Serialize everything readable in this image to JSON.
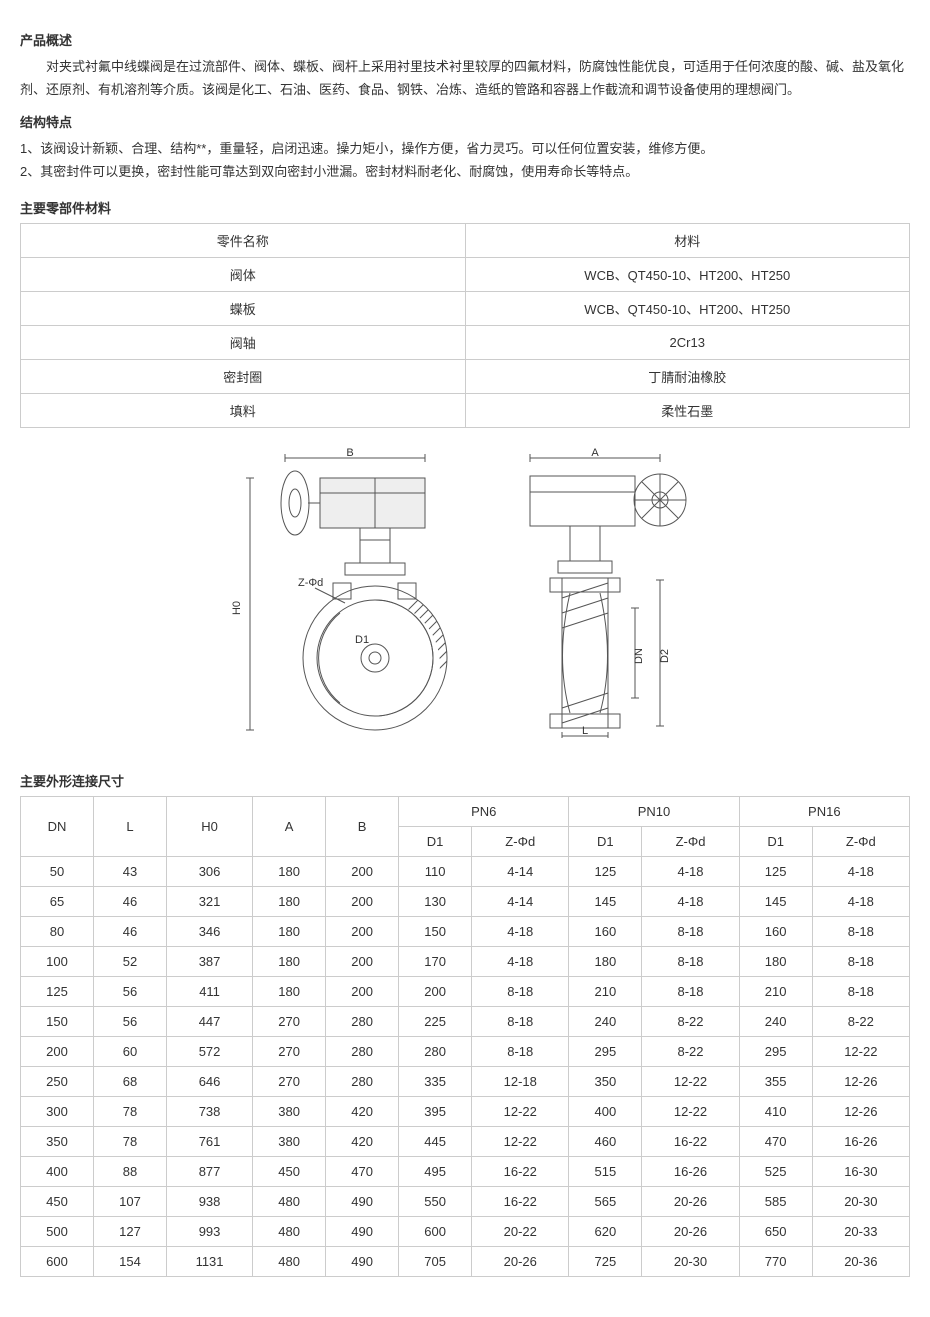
{
  "overview": {
    "title": "产品概述",
    "text": "对夹式衬氟中线蝶阀是在过流部件、阀体、蝶板、阀杆上采用衬里技术衬里较厚的四氟材料，防腐蚀性能优良，可适用于任何浓度的酸、碱、盐及氧化剂、还原剂、有机溶剂等介质。该阀是化工、石油、医药、食品、钢铁、冶炼、造纸的管路和容器上作截流和调节设备使用的理想阀门。"
  },
  "features": {
    "title": "结构特点",
    "items": [
      "1、该阀设计新颖、合理、结构**，重量轻，启闭迅速。操力矩小，操作方便，省力灵巧。可以任何位置安装，维修方便。",
      "2、其密封件可以更换，密封性能可靠达到双向密封小泄漏。密封材料耐老化、耐腐蚀，使用寿命长等特点。"
    ]
  },
  "materials": {
    "title": "主要零部件材料",
    "header": {
      "name": "零件名称",
      "material": "材料"
    },
    "rows": [
      {
        "name": "阀体",
        "material": "WCB、QT450-10、HT200、HT250"
      },
      {
        "name": "蝶板",
        "material": "WCB、QT450-10、HT200、HT250"
      },
      {
        "name": "阀轴",
        "material": "2Cr13"
      },
      {
        "name": "密封圈",
        "material": "丁腈耐油橡胶"
      },
      {
        "name": "填料",
        "material": "柔性石墨"
      }
    ]
  },
  "diagram": {
    "labels": {
      "B": "B",
      "A": "A",
      "H0": "H0",
      "ZPhi": "Z-Φd",
      "D1": "D1",
      "DN": "DN",
      "D2": "D2",
      "L": "L"
    },
    "stroke": "#555",
    "stroke_width": 1
  },
  "dims": {
    "title": "主要外形连接尺寸",
    "header1": {
      "DN": "DN",
      "L": "L",
      "H0": "H0",
      "A": "A",
      "B": "B",
      "PN6": "PN6",
      "PN10": "PN10",
      "PN16": "PN16"
    },
    "header2": {
      "D1": "D1",
      "ZPhi": "Z-Φd"
    },
    "rows": [
      {
        "DN": "50",
        "L": "43",
        "H0": "306",
        "A": "180",
        "B": "200",
        "PN6_D1": "110",
        "PN6_Z": "4-14",
        "PN10_D1": "125",
        "PN10_Z": "4-18",
        "PN16_D1": "125",
        "PN16_Z": "4-18"
      },
      {
        "DN": "65",
        "L": "46",
        "H0": "321",
        "A": "180",
        "B": "200",
        "PN6_D1": "130",
        "PN6_Z": "4-14",
        "PN10_D1": "145",
        "PN10_Z": "4-18",
        "PN16_D1": "145",
        "PN16_Z": "4-18"
      },
      {
        "DN": "80",
        "L": "46",
        "H0": "346",
        "A": "180",
        "B": "200",
        "PN6_D1": "150",
        "PN6_Z": "4-18",
        "PN10_D1": "160",
        "PN10_Z": "8-18",
        "PN16_D1": "160",
        "PN16_Z": "8-18"
      },
      {
        "DN": "100",
        "L": "52",
        "H0": "387",
        "A": "180",
        "B": "200",
        "PN6_D1": "170",
        "PN6_Z": "4-18",
        "PN10_D1": "180",
        "PN10_Z": "8-18",
        "PN16_D1": "180",
        "PN16_Z": "8-18"
      },
      {
        "DN": "125",
        "L": "56",
        "H0": "411",
        "A": "180",
        "B": "200",
        "PN6_D1": "200",
        "PN6_Z": "8-18",
        "PN10_D1": "210",
        "PN10_Z": "8-18",
        "PN16_D1": "210",
        "PN16_Z": "8-18"
      },
      {
        "DN": "150",
        "L": "56",
        "H0": "447",
        "A": "270",
        "B": "280",
        "PN6_D1": "225",
        "PN6_Z": "8-18",
        "PN10_D1": "240",
        "PN10_Z": "8-22",
        "PN16_D1": "240",
        "PN16_Z": "8-22"
      },
      {
        "DN": "200",
        "L": "60",
        "H0": "572",
        "A": "270",
        "B": "280",
        "PN6_D1": "280",
        "PN6_Z": "8-18",
        "PN10_D1": "295",
        "PN10_Z": "8-22",
        "PN16_D1": "295",
        "PN16_Z": "12-22"
      },
      {
        "DN": "250",
        "L": "68",
        "H0": "646",
        "A": "270",
        "B": "280",
        "PN6_D1": "335",
        "PN6_Z": "12-18",
        "PN10_D1": "350",
        "PN10_Z": "12-22",
        "PN16_D1": "355",
        "PN16_Z": "12-26"
      },
      {
        "DN": "300",
        "L": "78",
        "H0": "738",
        "A": "380",
        "B": "420",
        "PN6_D1": "395",
        "PN6_Z": "12-22",
        "PN10_D1": "400",
        "PN10_Z": "12-22",
        "PN16_D1": "410",
        "PN16_Z": "12-26"
      },
      {
        "DN": "350",
        "L": "78",
        "H0": "761",
        "A": "380",
        "B": "420",
        "PN6_D1": "445",
        "PN6_Z": "12-22",
        "PN10_D1": "460",
        "PN10_Z": "16-22",
        "PN16_D1": "470",
        "PN16_Z": "16-26"
      },
      {
        "DN": "400",
        "L": "88",
        "H0": "877",
        "A": "450",
        "B": "470",
        "PN6_D1": "495",
        "PN6_Z": "16-22",
        "PN10_D1": "515",
        "PN10_Z": "16-26",
        "PN16_D1": "525",
        "PN16_Z": "16-30"
      },
      {
        "DN": "450",
        "L": "107",
        "H0": "938",
        "A": "480",
        "B": "490",
        "PN6_D1": "550",
        "PN6_Z": "16-22",
        "PN10_D1": "565",
        "PN10_Z": "20-26",
        "PN16_D1": "585",
        "PN16_Z": "20-30"
      },
      {
        "DN": "500",
        "L": "127",
        "H0": "993",
        "A": "480",
        "B": "490",
        "PN6_D1": "600",
        "PN6_Z": "20-22",
        "PN10_D1": "620",
        "PN10_Z": "20-26",
        "PN16_D1": "650",
        "PN16_Z": "20-33"
      },
      {
        "DN": "600",
        "L": "154",
        "H0": "1131",
        "A": "480",
        "B": "490",
        "PN6_D1": "705",
        "PN6_Z": "20-26",
        "PN10_D1": "725",
        "PN10_Z": "20-30",
        "PN16_D1": "770",
        "PN16_Z": "20-36"
      }
    ]
  }
}
